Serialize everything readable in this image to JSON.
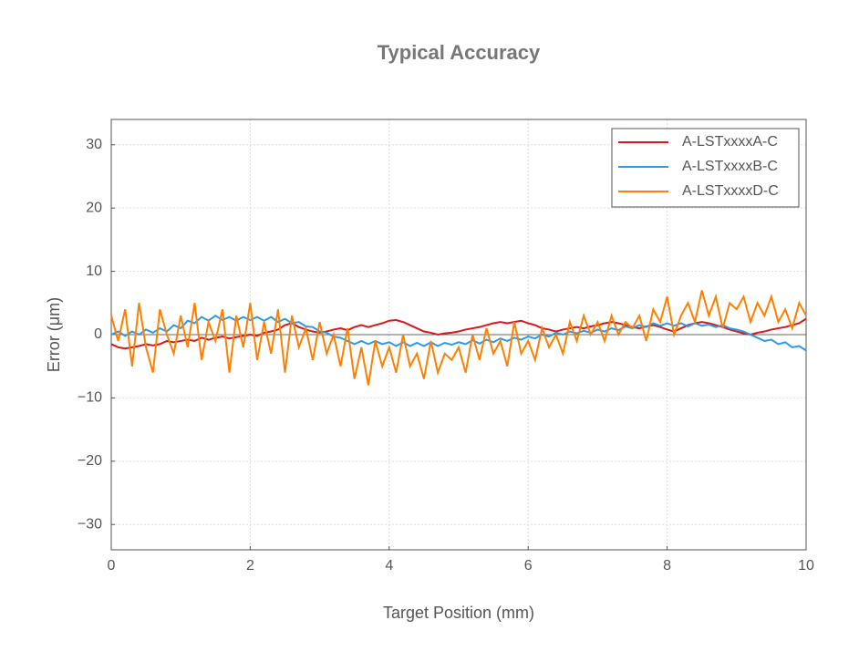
{
  "chart_data": {
    "type": "line",
    "title": "Typical Accuracy",
    "x_label": "Target Position (mm)",
    "y_label": "Error (μm)",
    "x": [
      0,
      0.1,
      0.2,
      0.3,
      0.4,
      0.5,
      0.6,
      0.7,
      0.8,
      0.9,
      1,
      1.1,
      1.2,
      1.3,
      1.4,
      1.5,
      1.6,
      1.7,
      1.8,
      1.9,
      2,
      2.1,
      2.2,
      2.3,
      2.4,
      2.5,
      2.6,
      2.7,
      2.8,
      2.9,
      3,
      3.1,
      3.2,
      3.3,
      3.4,
      3.5,
      3.6,
      3.7,
      3.8,
      3.9,
      4,
      4.1,
      4.2,
      4.3,
      4.4,
      4.5,
      4.6,
      4.7,
      4.8,
      4.9,
      5,
      5.1,
      5.2,
      5.3,
      5.4,
      5.5,
      5.6,
      5.7,
      5.8,
      5.9,
      6,
      6.1,
      6.2,
      6.3,
      6.4,
      6.5,
      6.6,
      6.7,
      6.8,
      6.9,
      7,
      7.1,
      7.2,
      7.3,
      7.4,
      7.5,
      7.6,
      7.7,
      7.8,
      7.9,
      8,
      8.1,
      8.2,
      8.3,
      8.4,
      8.5,
      8.6,
      8.7,
      8.8,
      8.9,
      9,
      9.1,
      9.2,
      9.3,
      9.4,
      9.5,
      9.6,
      9.7,
      9.8,
      9.9,
      10
    ],
    "series": [
      {
        "name": "A-LSTxxxxA-C",
        "color": "#d7191c",
        "values": [
          -1.5,
          -2,
          -2.2,
          -2,
          -1.8,
          -1.5,
          -1.7,
          -1.5,
          -1,
          -1.2,
          -1,
          -0.8,
          -1,
          -0.5,
          -0.8,
          -0.5,
          -0.3,
          -0.6,
          -0.4,
          -0.2,
          0,
          -0.2,
          0.3,
          0.5,
          0.8,
          1.5,
          1.8,
          1.2,
          0.8,
          0.5,
          0.3,
          0.5,
          0.8,
          1,
          0.7,
          1.2,
          1.5,
          1.2,
          1.5,
          1.8,
          2.2,
          2.3,
          2,
          1.5,
          1,
          0.5,
          0.3,
          0,
          0.2,
          0.3,
          0.5,
          0.8,
          1,
          1.2,
          1.5,
          1.8,
          2,
          1.8,
          2,
          2.2,
          1.8,
          1.5,
          1,
          0.8,
          0.5,
          0.8,
          1,
          1.2,
          1,
          1.3,
          1.5,
          1.8,
          2,
          1.8,
          1.5,
          1.2,
          1,
          1.3,
          1.5,
          1.2,
          0.8,
          0.5,
          1,
          1.5,
          1.8,
          2,
          1.8,
          1.5,
          1.2,
          0.8,
          0.5,
          0.2,
          0,
          0.3,
          0.5,
          0.8,
          1,
          1.2,
          1.5,
          1.8,
          2.5
        ]
      },
      {
        "name": "A-LSTxxxxB-C",
        "color": "#2b9be8",
        "values": [
          0,
          0.5,
          -0.2,
          0.5,
          0,
          0.8,
          0.3,
          1,
          0.5,
          1.5,
          1,
          2.2,
          1.8,
          2.8,
          2.2,
          3,
          2.3,
          2.8,
          2.2,
          2.8,
          2.3,
          2.8,
          2.2,
          2.8,
          2,
          2.5,
          1.8,
          2,
          1.3,
          1.2,
          0.5,
          0.3,
          -0.3,
          -0.5,
          -1,
          -1.5,
          -1,
          -1.5,
          -1,
          -1.5,
          -1.2,
          -1.8,
          -1.2,
          -1.8,
          -1.3,
          -1.8,
          -1.2,
          -1.8,
          -1.3,
          -1.6,
          -1.2,
          -1.5,
          -0.9,
          -1.4,
          -0.8,
          -1.2,
          -0.6,
          -1,
          -0.5,
          -0.8,
          -0.3,
          -0.6,
          0,
          -0.3,
          0.3,
          0,
          0.5,
          0.2,
          0.6,
          0.3,
          0.8,
          0.5,
          1,
          0.7,
          1.3,
          1,
          1.5,
          1.2,
          1.8,
          1.4,
          1.8,
          1.4,
          1.8,
          1.3,
          1.8,
          1.4,
          1.6,
          1.2,
          1.5,
          1,
          0.8,
          0.5,
          0,
          -0.5,
          -1,
          -0.8,
          -1.5,
          -1.2,
          -2,
          -1.8,
          -2.5
        ]
      },
      {
        "name": "A-LSTxxxxD-C",
        "color": "#ff8000",
        "values": [
          3,
          -1,
          4,
          -5,
          5,
          -2,
          -6,
          4,
          0,
          -3,
          3,
          -2,
          5,
          -4,
          2,
          -1,
          4,
          -6,
          3,
          -2,
          5,
          -4,
          2,
          -3,
          4,
          -6,
          3,
          -2,
          1,
          -4,
          2,
          -3,
          0,
          -5,
          1,
          -7,
          -2,
          -8,
          -1,
          -5,
          -2,
          -6,
          0,
          -5,
          -3,
          -7,
          -1,
          -6,
          -3,
          -4,
          -2,
          -6,
          0,
          -4,
          1,
          -3,
          -1,
          -5,
          2,
          -3,
          -1,
          -4,
          1,
          -2,
          0,
          -3,
          2,
          -1,
          3,
          0,
          2,
          -1,
          3,
          0,
          2,
          1,
          3,
          -1,
          4,
          2,
          6,
          0,
          3,
          5,
          2,
          7,
          3,
          6,
          1,
          5,
          4,
          6,
          2,
          5,
          3,
          6,
          2,
          4,
          1,
          5,
          3
        ]
      }
    ],
    "xlim": [
      0,
      10
    ],
    "ylim": [
      -34,
      34
    ],
    "xticks": [
      0,
      2,
      4,
      6,
      8,
      10
    ],
    "yticks": [
      {
        "value": -30,
        "label": "−30"
      },
      {
        "value": -20,
        "label": "−20"
      },
      {
        "value": -10,
        "label": "−10"
      },
      0,
      10,
      20,
      30
    ],
    "grid": true,
    "legend": "upper right"
  }
}
